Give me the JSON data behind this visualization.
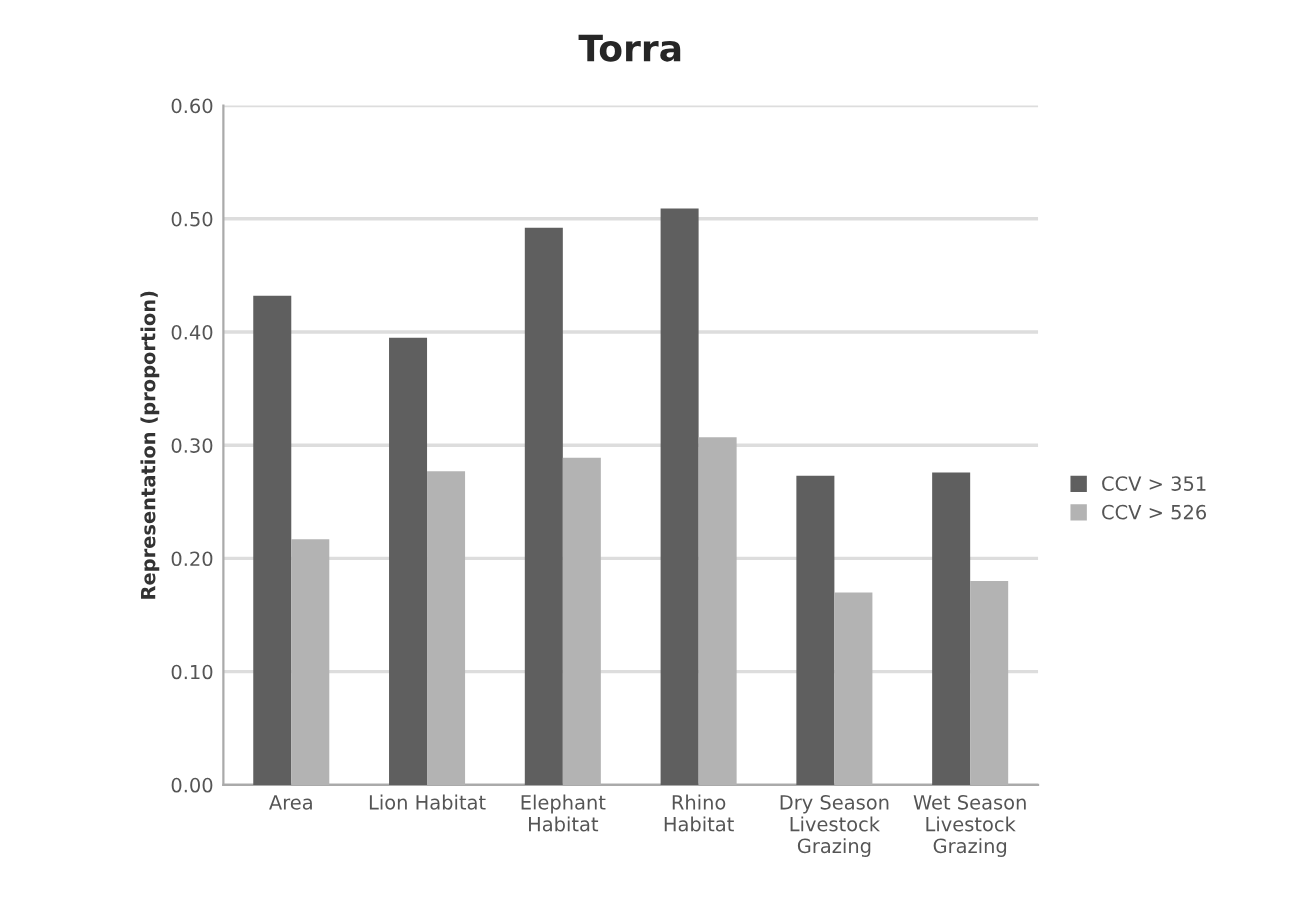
{
  "chart_data": {
    "type": "bar",
    "title": "Torra",
    "ylabel": "Representation (proportion)",
    "categories": [
      "Area",
      "Lion Habitat",
      "Elephant\nHabitat",
      "Rhino\nHabitat",
      "Dry Season\nLivestock\nGrazing",
      "Wet Season\nLivestock\nGrazing"
    ],
    "series": [
      {
        "name": "CCV > 351",
        "color": "#5f5f5f",
        "values": [
          0.432,
          0.395,
          0.492,
          0.509,
          0.273,
          0.276
        ]
      },
      {
        "name": "CCV > 526",
        "color": "#b3b3b3",
        "values": [
          0.217,
          0.277,
          0.289,
          0.307,
          0.17,
          0.18
        ]
      }
    ],
    "ylim": [
      0,
      0.6
    ],
    "yticks": [
      {
        "value": 0,
        "label": "0.00"
      },
      {
        "value": 0.1,
        "label": "0.10"
      },
      {
        "value": 0.2,
        "label": "0.20"
      },
      {
        "value": 0.3,
        "label": "0.30"
      },
      {
        "value": 0.4,
        "label": "0.40"
      },
      {
        "value": 0.5,
        "label": "0.50"
      },
      {
        "value": 0.6,
        "label": "0.60"
      }
    ],
    "grid": "y",
    "legend": "right"
  }
}
